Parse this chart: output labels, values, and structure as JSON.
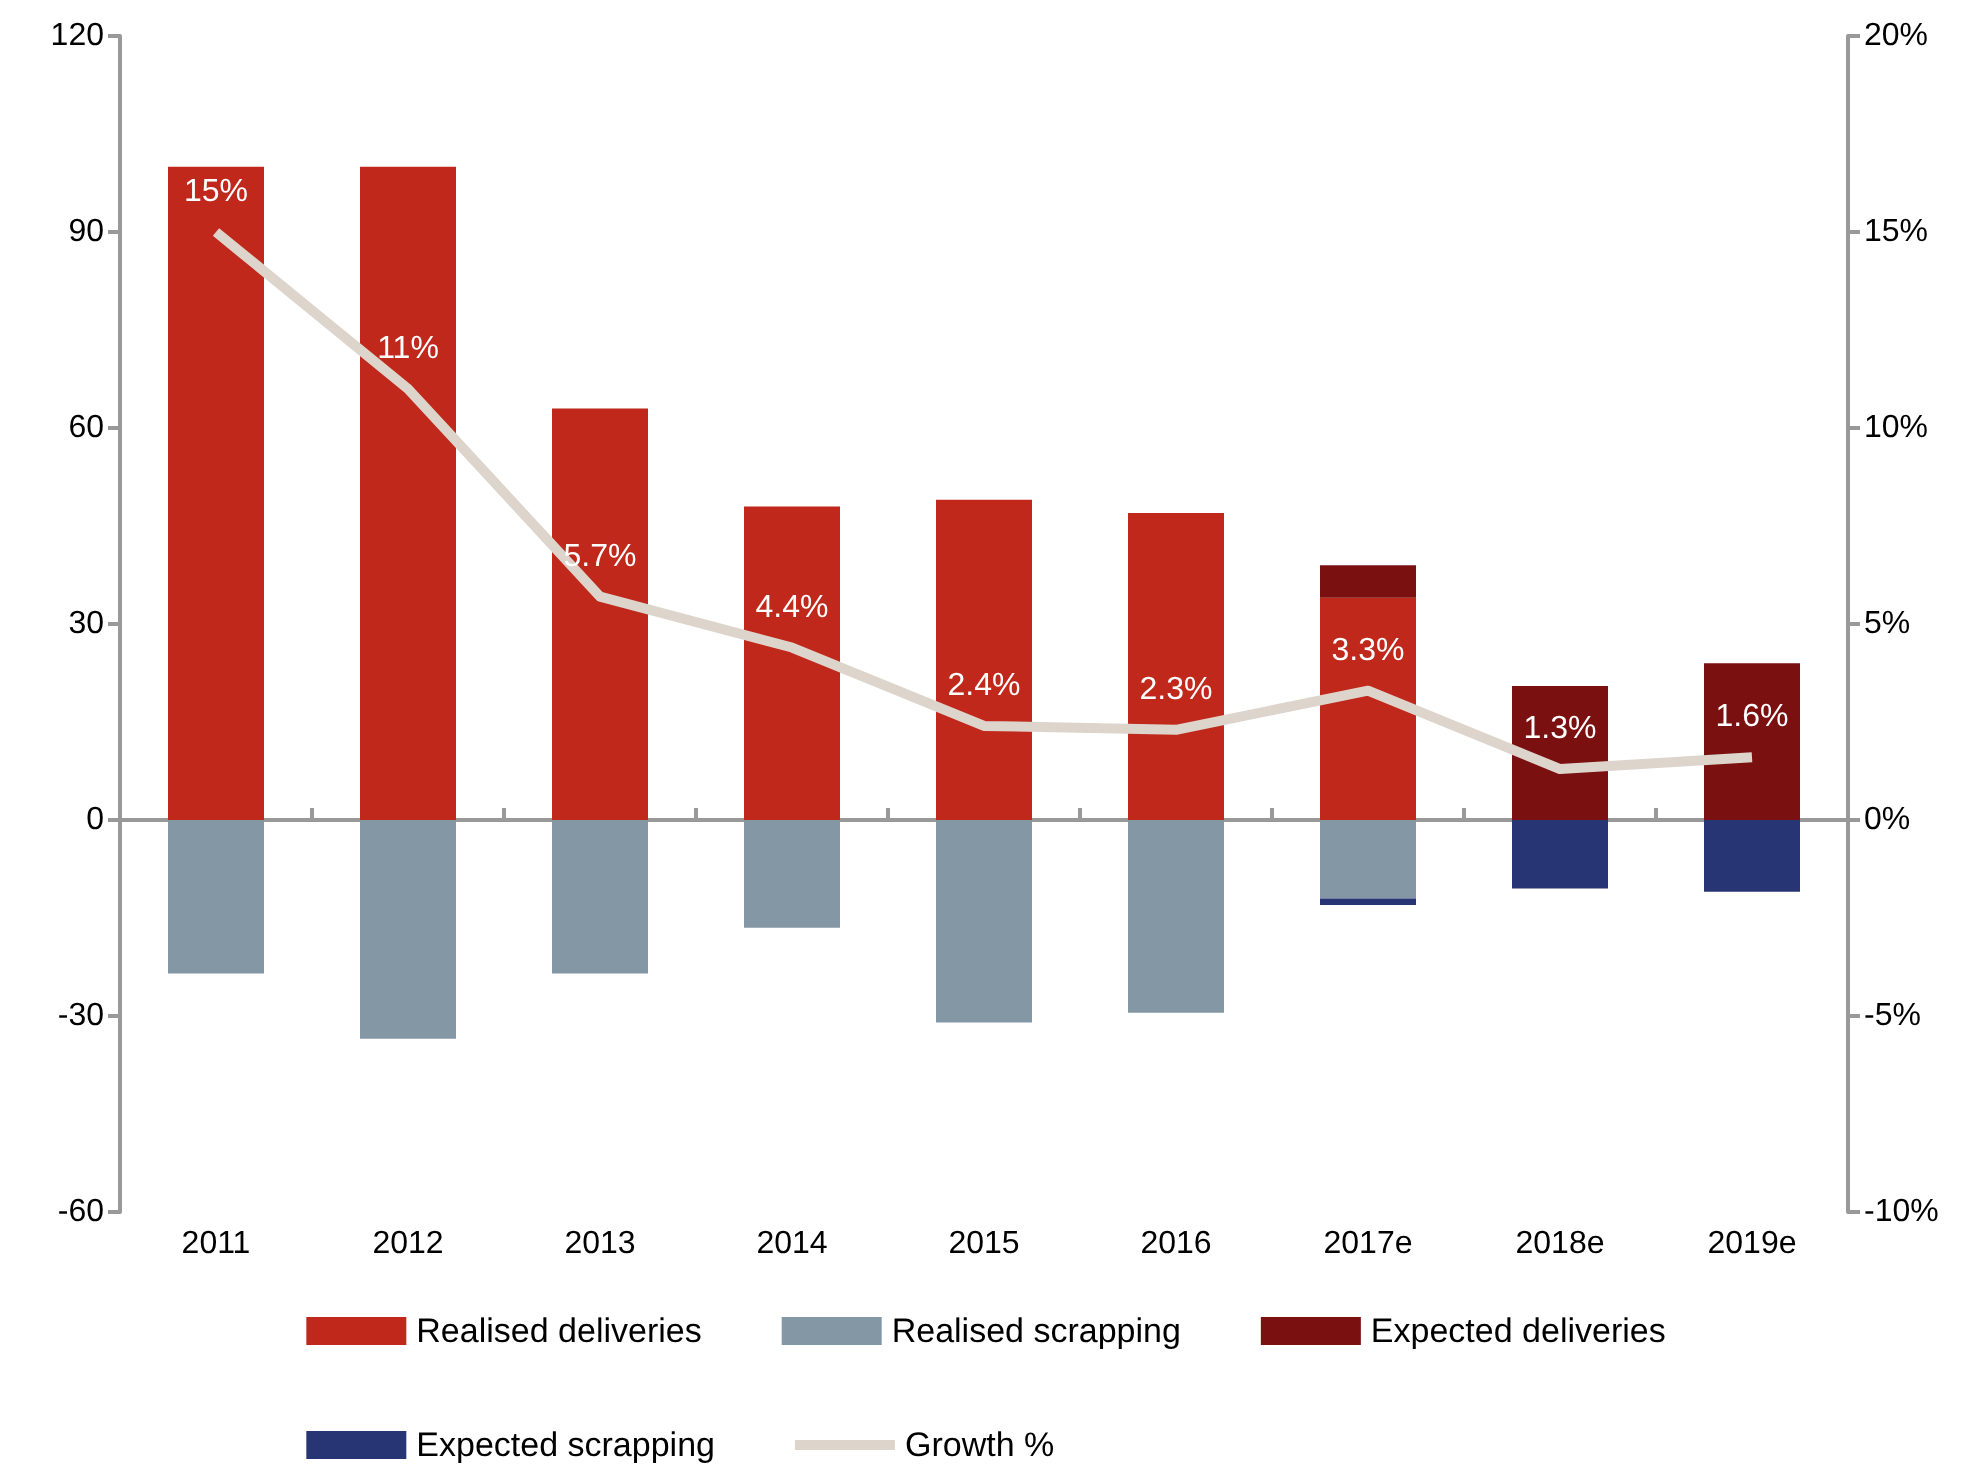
{
  "chart_data": {
    "type": "bar",
    "categories": [
      "2011",
      "2012",
      "2013",
      "2014",
      "2015",
      "2016",
      "2017e",
      "2018e",
      "2019e"
    ],
    "stacked": true,
    "series": [
      {
        "name": "Realised deliveries",
        "color": "#c0281b",
        "values": [
          100,
          100,
          63,
          48,
          49,
          47,
          34,
          null,
          null
        ]
      },
      {
        "name": "Realised scrapping",
        "color": "#8497a5",
        "values": [
          -23.5,
          -33.5,
          -23.5,
          -16.5,
          -31,
          -29.5,
          -12,
          null,
          null
        ]
      },
      {
        "name": "Expected deliveries",
        "color": "#7b1010",
        "values": [
          null,
          null,
          null,
          null,
          null,
          null,
          5,
          20.5,
          24
        ]
      },
      {
        "name": "Expected scrapping",
        "color": "#283574",
        "values": [
          null,
          null,
          null,
          null,
          null,
          null,
          -1,
          -10.5,
          -11
        ]
      },
      {
        "name": "Growth %",
        "type": "line",
        "axis": "y2",
        "color": "#ddd5cc",
        "values": [
          15,
          11,
          5.7,
          4.4,
          2.4,
          2.3,
          3.3,
          1.3,
          1.6
        ],
        "value_labels": [
          "15%",
          "11%",
          "5.7%",
          "4.4%",
          "2.4%",
          "2.3%",
          "3.3%",
          "1.3%",
          "1.6%"
        ]
      }
    ],
    "ylim": [
      -60,
      120
    ],
    "yticks": [
      -60,
      -30,
      0,
      30,
      60,
      90,
      120
    ],
    "y2lim": [
      -10,
      20
    ],
    "y2ticks": [
      {
        "value": -10,
        "label": "-10%"
      },
      {
        "value": -5,
        "label": "-5%"
      },
      {
        "value": 0,
        "label": "0%"
      },
      {
        "value": 5,
        "label": "5%"
      },
      {
        "value": 10,
        "label": "10%"
      },
      {
        "value": 15,
        "label": "15%"
      },
      {
        "value": 20,
        "label": "20%"
      }
    ],
    "legend": "bottom",
    "marker": "none"
  }
}
